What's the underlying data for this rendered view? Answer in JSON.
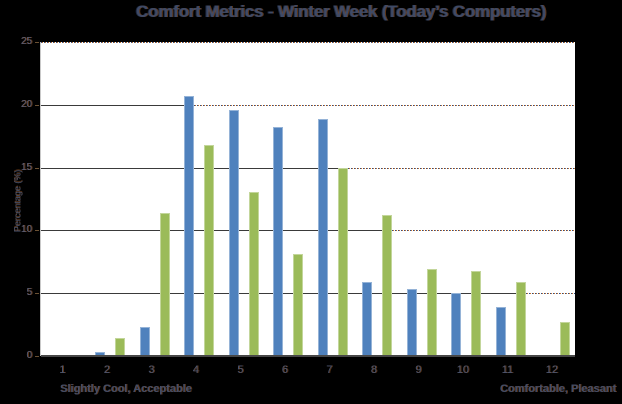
{
  "title": "Comfort Metrics - Winter Week (Today’s Computers)",
  "colors": {
    "background": "#000000",
    "plot_background": "#ffffff",
    "series_blue_fill": "#4f81bd",
    "series_blue_border": "#95b3d7",
    "series_green_fill": "#9bbb59",
    "series_green_border": "#c3d69b",
    "gridline": "#3a3a3a",
    "dotted_gridline_orange": "#c2702e",
    "dotted_gridline_blue": "#2f4d80",
    "text": "#414d69"
  },
  "chart_data": {
    "type": "bar",
    "title": "Comfort Metrics - Winter Week (Today’s Computers)",
    "xlabel": "",
    "ylabel": "Percentage (%)",
    "ylim": [
      0,
      25
    ],
    "yticks": [
      0,
      5,
      10,
      15,
      20,
      25
    ],
    "grid": "horizontal",
    "legend_position": "none",
    "categories": [
      "1",
      "2",
      "3",
      "4",
      "5",
      "6",
      "7",
      "8",
      "9",
      "10",
      "11",
      "12"
    ],
    "series": [
      {
        "name": "blue-series",
        "values": [
          0,
          0.3,
          2.3,
          20.7,
          19.6,
          18.2,
          18.9,
          5.9,
          5.3,
          5.0,
          3.9,
          0.1
        ]
      },
      {
        "name": "green-series",
        "values": [
          0,
          1.4,
          11.4,
          16.8,
          13.1,
          8.1,
          15.0,
          11.2,
          6.9,
          6.8,
          5.9,
          2.7
        ]
      }
    ],
    "annotations": {
      "left": "Slightly Cool, Acceptable",
      "right": "Comfortable, Pleasant"
    }
  }
}
